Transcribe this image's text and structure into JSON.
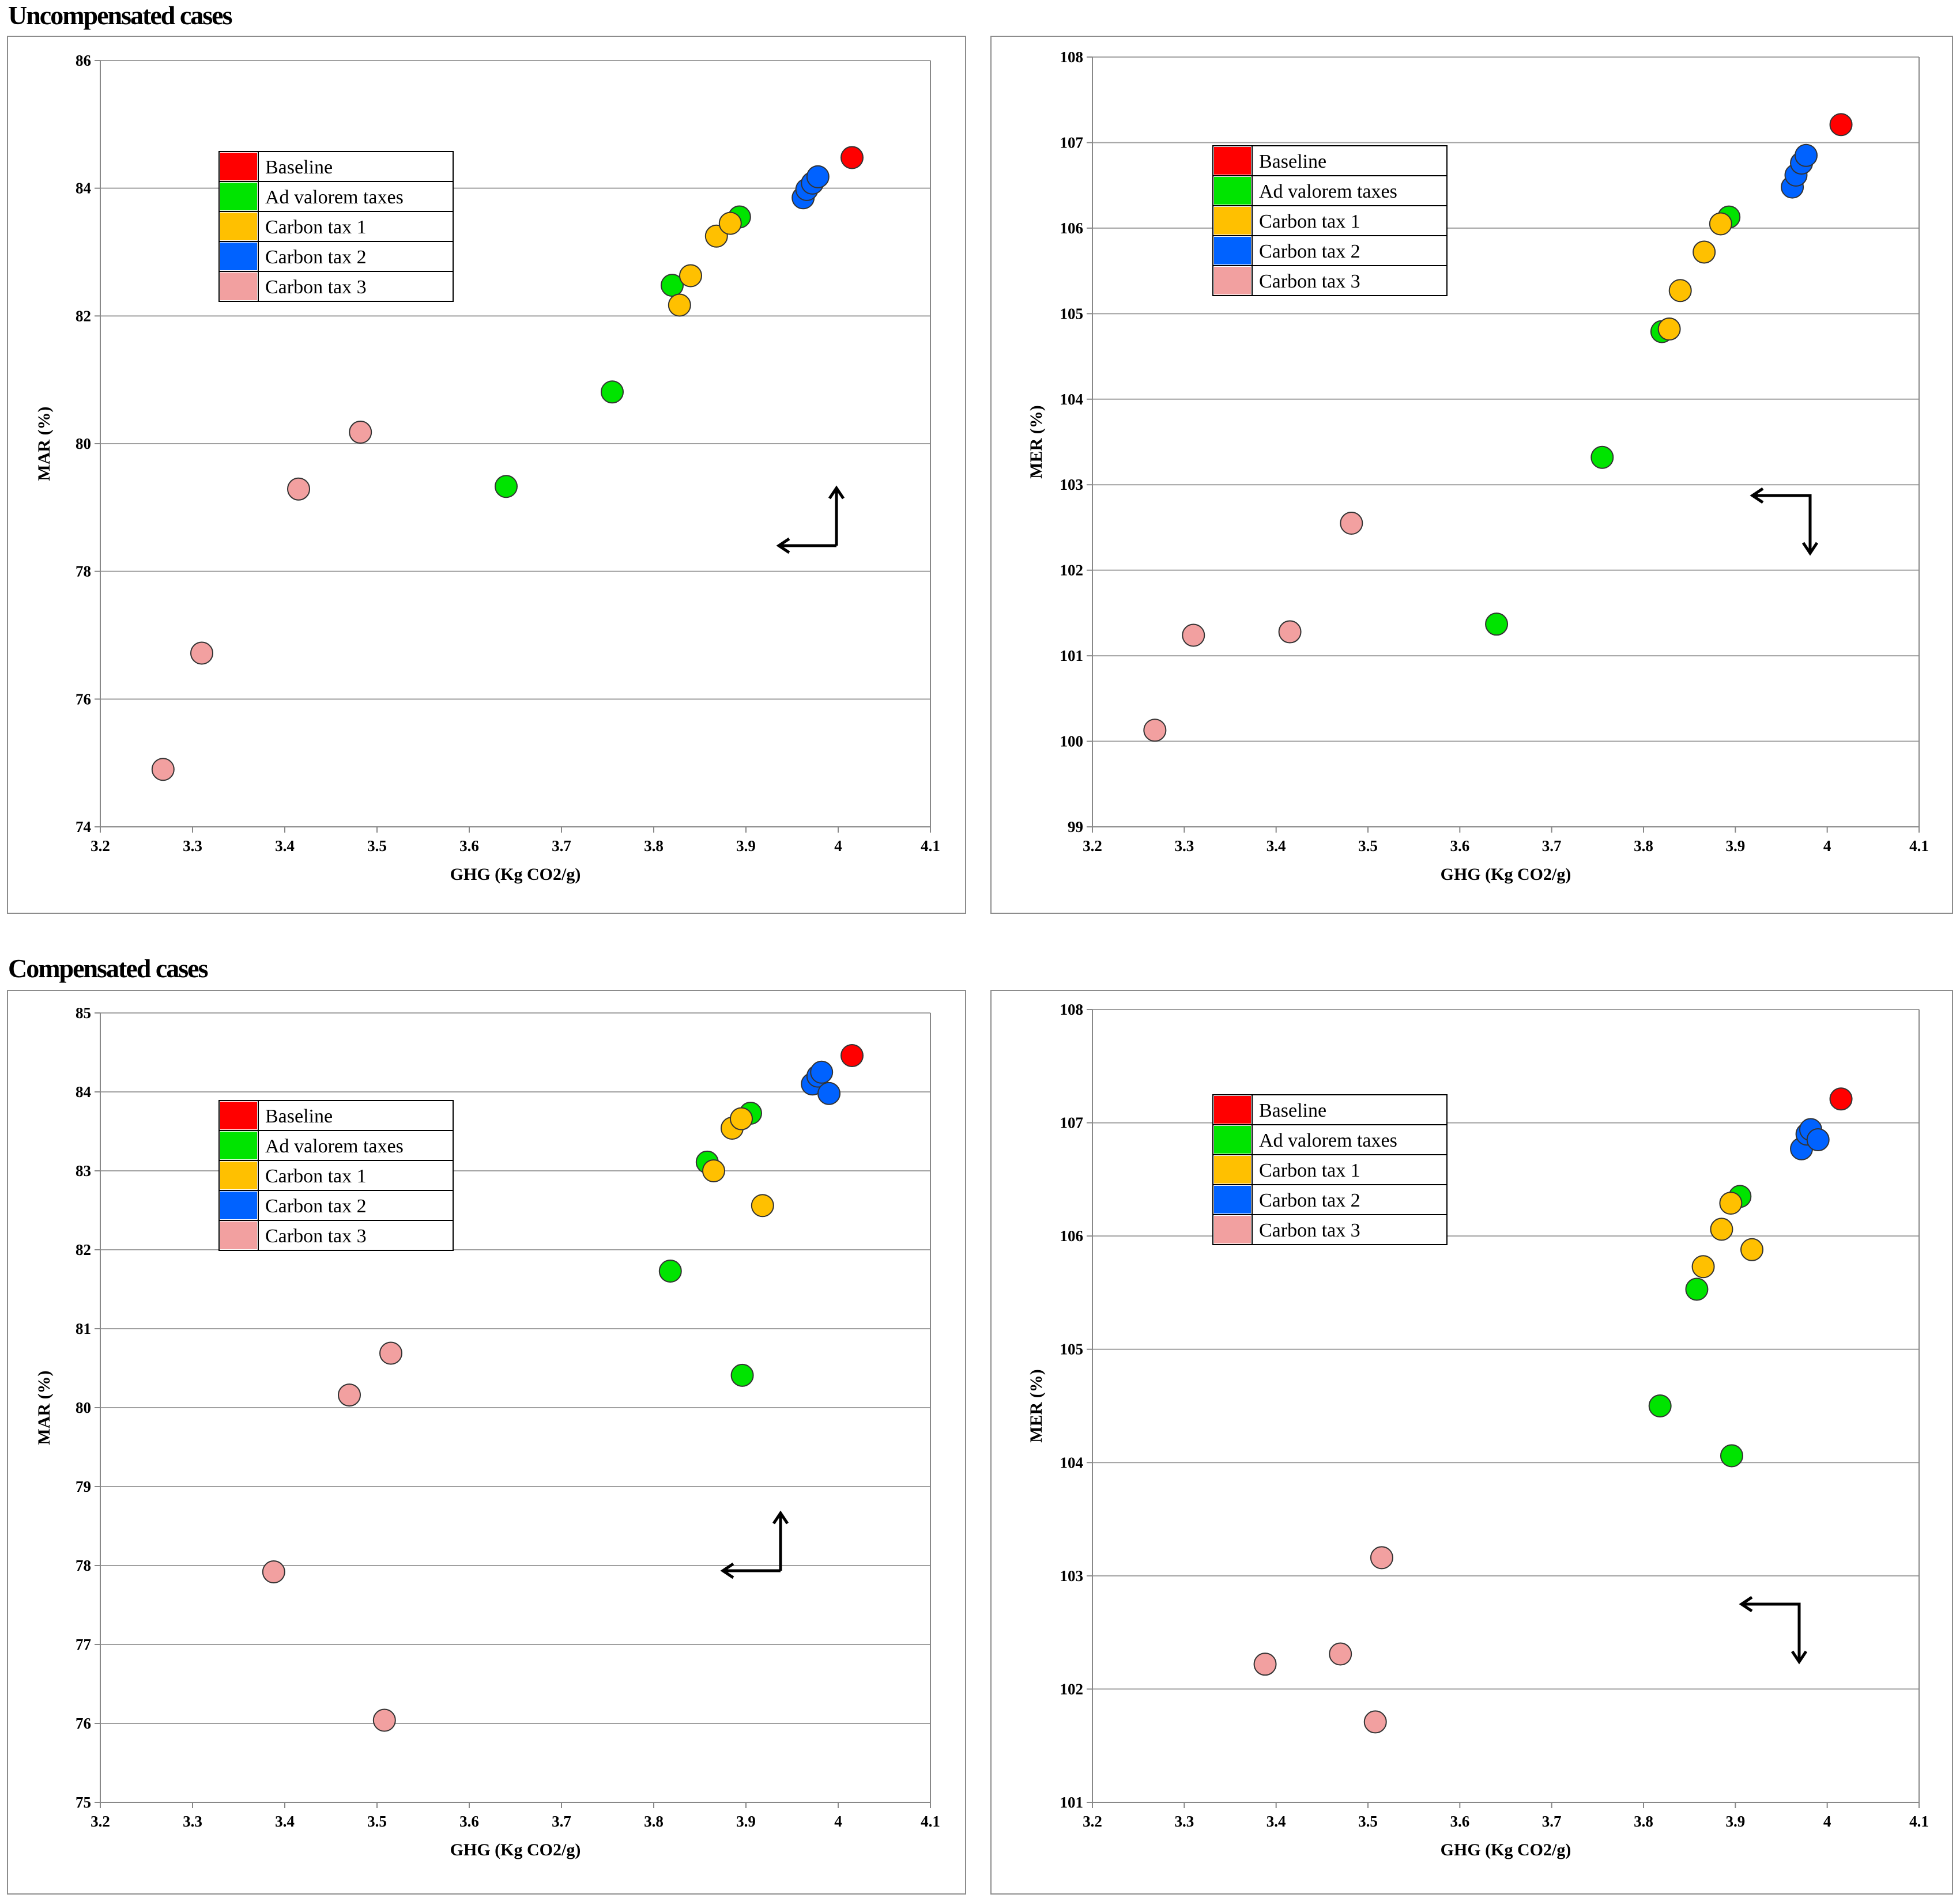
{
  "sections": {
    "uncompensated": "Uncompensated cases",
    "compensated": "Compensated cases"
  },
  "legend": [
    {
      "label": "Baseline",
      "color": "#ff0000"
    },
    {
      "label": "Ad valorem taxes",
      "color": "#00e400"
    },
    {
      "label": "Carbon tax 1",
      "color": "#ffc000"
    },
    {
      "label": "Carbon tax 2",
      "color": "#0062ff"
    },
    {
      "label": "Carbon tax 3",
      "color": "#f2a0a0"
    }
  ],
  "chart_data": [
    {
      "type": "scatter",
      "title": "",
      "xlabel": "GHG (Kg CO2/g)",
      "ylabel": "MAR (%)",
      "xlim": [
        3.2,
        4.1
      ],
      "ylim": [
        74,
        86
      ],
      "xticks": [
        "3.2",
        "3.3",
        "3.4",
        "3.5",
        "3.6",
        "3.7",
        "3.8",
        "3.9",
        "4",
        "4.1"
      ],
      "yticks": [
        "74",
        "76",
        "78",
        "80",
        "82",
        "84",
        "86"
      ],
      "grid": "horizontal",
      "legend_position": "top-left",
      "arrow": "left-up",
      "series": [
        {
          "name": "Baseline",
          "points": [
            [
              4.015,
              84.48
            ]
          ]
        },
        {
          "name": "Ad valorem taxes",
          "points": [
            [
              3.64,
              79.33
            ],
            [
              3.755,
              80.81
            ],
            [
              3.82,
              82.48
            ],
            [
              3.893,
              83.55
            ]
          ]
        },
        {
          "name": "Carbon tax 1",
          "points": [
            [
              3.828,
              82.17
            ],
            [
              3.84,
              82.63
            ],
            [
              3.868,
              83.25
            ],
            [
              3.883,
              83.45
            ]
          ]
        },
        {
          "name": "Carbon tax 2",
          "points": [
            [
              3.962,
              83.85
            ],
            [
              3.966,
              83.98
            ],
            [
              3.972,
              84.08
            ],
            [
              3.978,
              84.18
            ]
          ]
        },
        {
          "name": "Carbon tax 3",
          "points": [
            [
              3.268,
              74.9
            ],
            [
              3.31,
              76.72
            ],
            [
              3.415,
              79.29
            ],
            [
              3.482,
              80.18
            ]
          ]
        }
      ]
    },
    {
      "type": "scatter",
      "title": "",
      "xlabel": "GHG (Kg CO2/g)",
      "ylabel": "MER (%)",
      "xlim": [
        3.2,
        4.1
      ],
      "ylim": [
        99,
        108
      ],
      "xticks": [
        "3.2",
        "3.3",
        "3.4",
        "3.5",
        "3.6",
        "3.7",
        "3.8",
        "3.9",
        "4",
        "4.1"
      ],
      "yticks": [
        "99",
        "100",
        "101",
        "102",
        "103",
        "104",
        "105",
        "106",
        "107",
        "108"
      ],
      "grid": "horizontal",
      "legend_position": "top-left",
      "arrow": "left-down",
      "series": [
        {
          "name": "Baseline",
          "points": [
            [
              4.015,
              107.21
            ]
          ]
        },
        {
          "name": "Ad valorem taxes",
          "points": [
            [
              3.64,
              101.37
            ],
            [
              3.755,
              103.32
            ],
            [
              3.82,
              104.79
            ],
            [
              3.893,
              106.13
            ]
          ]
        },
        {
          "name": "Carbon tax 1",
          "points": [
            [
              3.828,
              104.82
            ],
            [
              3.84,
              105.27
            ],
            [
              3.866,
              105.72
            ],
            [
              3.884,
              106.05
            ]
          ]
        },
        {
          "name": "Carbon tax 2",
          "points": [
            [
              3.962,
              106.48
            ],
            [
              3.966,
              106.62
            ],
            [
              3.972,
              106.76
            ],
            [
              3.977,
              106.85
            ]
          ]
        },
        {
          "name": "Carbon tax 3",
          "points": [
            [
              3.268,
              100.13
            ],
            [
              3.31,
              101.24
            ],
            [
              3.415,
              101.28
            ],
            [
              3.482,
              102.55
            ]
          ]
        }
      ]
    },
    {
      "type": "scatter",
      "title": "",
      "xlabel": "GHG (Kg CO2/g)",
      "ylabel": "MAR (%)",
      "xlim": [
        3.2,
        4.1
      ],
      "ylim": [
        75,
        85
      ],
      "xticks": [
        "3.2",
        "3.3",
        "3.4",
        "3.5",
        "3.6",
        "3.7",
        "3.8",
        "3.9",
        "4",
        "4.1"
      ],
      "yticks": [
        "75",
        "76",
        "77",
        "78",
        "79",
        "80",
        "81",
        "82",
        "83",
        "84",
        "85"
      ],
      "grid": "horizontal",
      "legend_position": "top-left",
      "arrow": "left-up",
      "series": [
        {
          "name": "Baseline",
          "points": [
            [
              4.015,
              84.46
            ]
          ]
        },
        {
          "name": "Ad valorem taxes",
          "points": [
            [
              3.818,
              81.73
            ],
            [
              3.858,
              83.11
            ],
            [
              3.896,
              80.41
            ],
            [
              3.905,
              83.73
            ]
          ]
        },
        {
          "name": "Carbon tax 1",
          "points": [
            [
              3.865,
              83.0
            ],
            [
              3.885,
              83.54
            ],
            [
              3.895,
              83.66
            ],
            [
              3.918,
              82.56
            ]
          ]
        },
        {
          "name": "Carbon tax 2",
          "points": [
            [
              3.972,
              84.1
            ],
            [
              3.978,
              84.2
            ],
            [
              3.982,
              84.25
            ],
            [
              3.99,
              83.98
            ]
          ]
        },
        {
          "name": "Carbon tax 3",
          "points": [
            [
              3.388,
              77.92
            ],
            [
              3.47,
              80.16
            ],
            [
              3.515,
              80.69
            ],
            [
              3.508,
              76.04
            ]
          ]
        }
      ]
    },
    {
      "type": "scatter",
      "title": "",
      "xlabel": "GHG (Kg CO2/g)",
      "ylabel": "MER (%)",
      "xlim": [
        3.2,
        4.1
      ],
      "ylim": [
        101,
        108
      ],
      "xticks": [
        "3.2",
        "3.3",
        "3.4",
        "3.5",
        "3.6",
        "3.7",
        "3.8",
        "3.9",
        "4",
        "4.1"
      ],
      "yticks": [
        "101",
        "102",
        "103",
        "104",
        "105",
        "106",
        "107",
        "108"
      ],
      "grid": "horizontal",
      "legend_position": "top-left",
      "arrow": "left-down",
      "series": [
        {
          "name": "Baseline",
          "points": [
            [
              4.015,
              107.21
            ]
          ]
        },
        {
          "name": "Ad valorem taxes",
          "points": [
            [
              3.818,
              104.5
            ],
            [
              3.858,
              105.53
            ],
            [
              3.896,
              104.06
            ],
            [
              3.905,
              106.35
            ]
          ]
        },
        {
          "name": "Carbon tax 1",
          "points": [
            [
              3.865,
              105.73
            ],
            [
              3.885,
              106.06
            ],
            [
              3.895,
              106.29
            ],
            [
              3.918,
              105.88
            ]
          ]
        },
        {
          "name": "Carbon tax 2",
          "points": [
            [
              3.972,
              106.77
            ],
            [
              3.978,
              106.9
            ],
            [
              3.982,
              106.94
            ],
            [
              3.99,
              106.85
            ]
          ]
        },
        {
          "name": "Carbon tax 3",
          "points": [
            [
              3.388,
              102.22
            ],
            [
              3.47,
              102.31
            ],
            [
              3.515,
              103.16
            ],
            [
              3.508,
              101.71
            ]
          ]
        }
      ]
    }
  ]
}
